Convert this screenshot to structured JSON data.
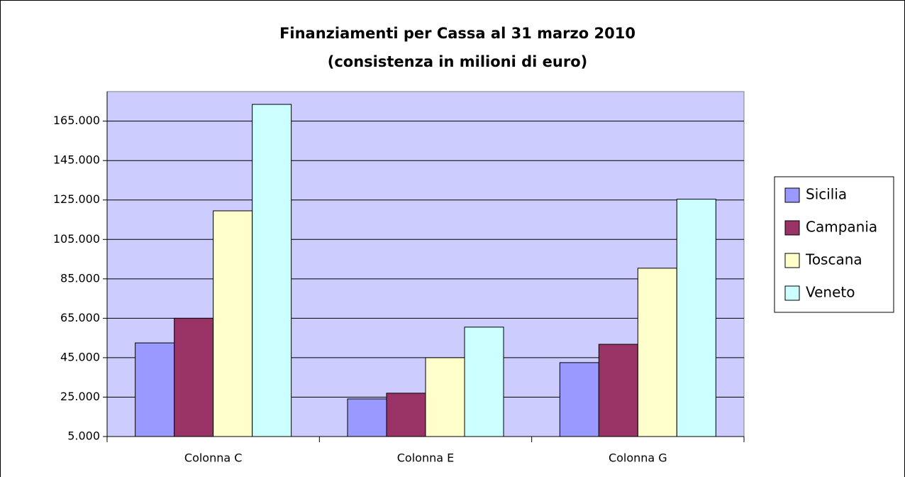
{
  "chart_data": {
    "type": "bar",
    "title": "Finanziamenti per Cassa al 31 marzo 2010",
    "subtitle": "(consistenza in milioni di euro)",
    "categories": [
      "Colonna C",
      "Colonna E",
      "Colonna G"
    ],
    "series": [
      {
        "name": "Sicilia",
        "color": "#9999ff",
        "values": [
          52500,
          24100,
          42500
        ]
      },
      {
        "name": "Campania",
        "color": "#993366",
        "values": [
          65000,
          27000,
          51800
        ]
      },
      {
        "name": "Toscana",
        "color": "#ffffcc",
        "values": [
          119500,
          45000,
          90400
        ]
      },
      {
        "name": "Veneto",
        "color": "#ccffff",
        "values": [
          173500,
          60500,
          125400
        ]
      }
    ],
    "ylim": [
      5000,
      180000
    ],
    "yticks": [
      {
        "value": 5000,
        "label": "5.000"
      },
      {
        "value": 25000,
        "label": "25.000"
      },
      {
        "value": 45000,
        "label": "45.000"
      },
      {
        "value": 65000,
        "label": "65.000"
      },
      {
        "value": 85000,
        "label": "85.000"
      },
      {
        "value": 105000,
        "label": "105.000"
      },
      {
        "value": 125000,
        "label": "125.000"
      },
      {
        "value": 145000,
        "label": "145.000"
      },
      {
        "value": 165000,
        "label": "165.000"
      }
    ],
    "grid": true,
    "legend": "right",
    "plot_background": "#ccccff"
  }
}
